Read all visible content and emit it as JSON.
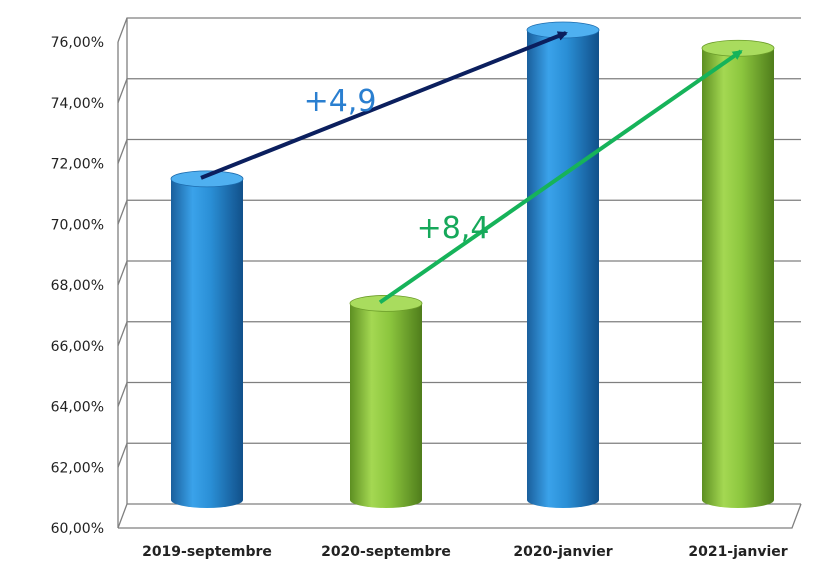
{
  "chart_data": {
    "type": "bar",
    "style": "3d-cylinder",
    "title": "",
    "xlabel": "",
    "ylabel": "",
    "ylim": [
      60,
      76
    ],
    "ytick_step": 2,
    "ytick_labels": [
      "60,00%",
      "62,00%",
      "64,00%",
      "66,00%",
      "68,00%",
      "70,00%",
      "72,00%",
      "74,00%",
      "76,00%"
    ],
    "grid": true,
    "legend": "none",
    "categories": [
      "2019-septembre",
      "2020-septembre",
      "2020-janvier",
      "2021-janvier"
    ],
    "values": [
      71.1,
      67.0,
      76.0,
      75.4
    ],
    "colors": [
      "#2a8fd6",
      "#8cc63e",
      "#2a8fd6",
      "#8cc63e"
    ],
    "annotations": [
      {
        "label": "+4,9",
        "from": 0,
        "to": 2,
        "color": "#0b1f5e",
        "text_color": "#2a7fd0"
      },
      {
        "label": "+8,4",
        "from": 1,
        "to": 3,
        "color": "#16b35a",
        "text_color": "#16a85a"
      }
    ]
  }
}
